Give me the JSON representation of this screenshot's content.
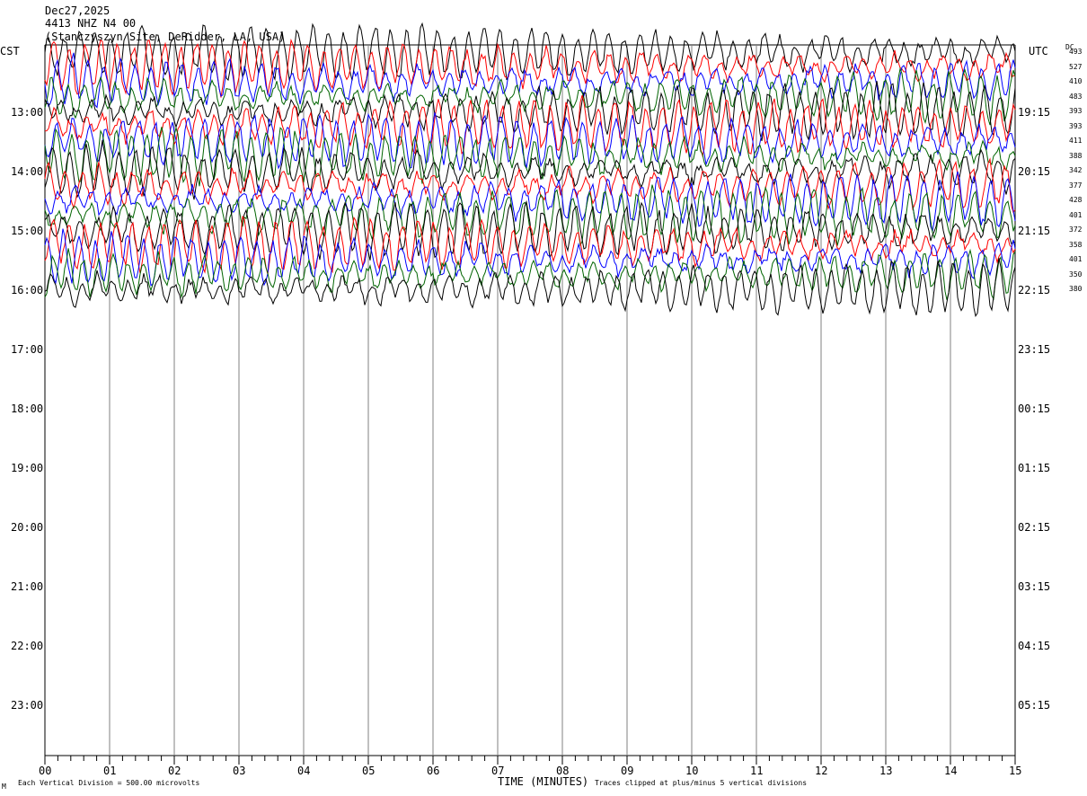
{
  "header": {
    "date": "Dec27,2025",
    "channel": "4413 NHZ N4 00",
    "station": "(Stanczyszyn Site, DeRidder, LA, USA)"
  },
  "labels": {
    "left_zone": "CST",
    "right_zone": "UTC",
    "dc": "DC",
    "footer_scale": "Each Vertical Division =  500.00 microvolts",
    "footer_axis": "TIME (MINUTES)",
    "footer_clip": "Traces clipped at plus/minus 5 vertical divisions",
    "corner_mark": "M"
  },
  "chart_data": {
    "type": "line",
    "xlabel": "TIME (MINUTES)",
    "xlim": [
      0,
      15
    ],
    "x_ticks": [
      "00",
      "01",
      "02",
      "03",
      "04",
      "05",
      "06",
      "07",
      "08",
      "09",
      "10",
      "11",
      "12",
      "13",
      "14",
      "15"
    ],
    "left_hour_labels": [
      "13:00",
      "14:00",
      "15:00",
      "16:00",
      "17:00",
      "18:00",
      "19:00",
      "20:00",
      "21:00",
      "22:00",
      "23:00"
    ],
    "right_hour_labels": [
      "19:15",
      "20:15",
      "21:15",
      "22:15",
      "23:15",
      "00:15",
      "01:15",
      "02:15",
      "03:15",
      "04:15",
      "05:15"
    ],
    "dc_values": [
      "493",
      "527",
      "410",
      "483",
      "393",
      "393",
      "411",
      "388",
      "342",
      "377",
      "428",
      "401",
      "372",
      "358",
      "401",
      "350",
      "380"
    ],
    "trace_colors": [
      "#000000",
      "#ff0000",
      "#0000ff",
      "#006400"
    ],
    "scale_microvolts_per_division": 500.0,
    "clip_divisions": 5
  }
}
